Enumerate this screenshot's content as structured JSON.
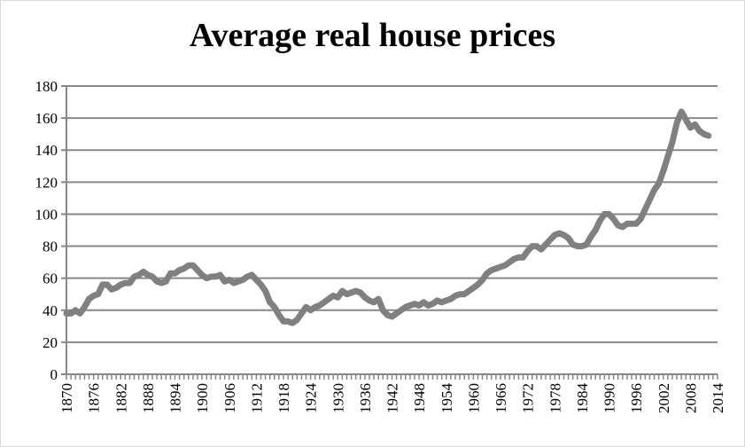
{
  "chart_data": {
    "type": "line",
    "title": "Average real house prices",
    "xlabel": "",
    "ylabel": "",
    "xlim": [
      1870,
      2014
    ],
    "ylim": [
      0,
      180
    ],
    "y_ticks": [
      0,
      20,
      40,
      60,
      80,
      100,
      120,
      140,
      160,
      180
    ],
    "x_ticks": [
      1870,
      1876,
      1882,
      1888,
      1894,
      1900,
      1906,
      1912,
      1918,
      1924,
      1930,
      1936,
      1942,
      1948,
      1954,
      1960,
      1966,
      1972,
      1978,
      1984,
      1990,
      1996,
      2002,
      2008,
      2014
    ],
    "grid": "horizontal",
    "legend": "none",
    "line_color": "#808080",
    "series": [
      {
        "x_start": 1870,
        "values": [
          38,
          38,
          40,
          38,
          42,
          47,
          49,
          50,
          56,
          56,
          53,
          54,
          56,
          57,
          57,
          61,
          62,
          64,
          62,
          61,
          58,
          57,
          58,
          63,
          63,
          65,
          66,
          68,
          68,
          65,
          62,
          60,
          61,
          61,
          62,
          58,
          59,
          57,
          58,
          59,
          61,
          62,
          59,
          56,
          52,
          45,
          42,
          37,
          33,
          33,
          32,
          34,
          38,
          42,
          40,
          42,
          43,
          45,
          47,
          49,
          48,
          52,
          50,
          51,
          52,
          51,
          48,
          46,
          45,
          47,
          40,
          37,
          36,
          38,
          40,
          42,
          43,
          44,
          43,
          45,
          43,
          44,
          46,
          45,
          46,
          47,
          49,
          50,
          50,
          52,
          54,
          56,
          59,
          63,
          65,
          66,
          67,
          68,
          70,
          72,
          73,
          73,
          77,
          80,
          80,
          78,
          81,
          84,
          87,
          88,
          87,
          85,
          81,
          80,
          80,
          81,
          86,
          90,
          96,
          100,
          100,
          97,
          93,
          92,
          94,
          94,
          94,
          97,
          103,
          109,
          115,
          119,
          127,
          136,
          145,
          157,
          164,
          159,
          154,
          156,
          152,
          150,
          149
        ]
      }
    ]
  }
}
